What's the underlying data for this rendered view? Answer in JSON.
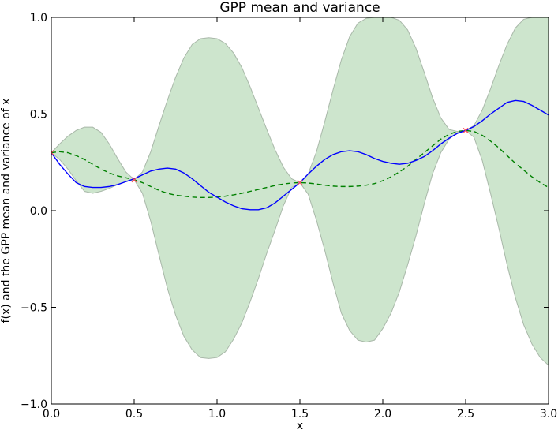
{
  "chart_data": {
    "type": "line",
    "title": "GPP mean and variance",
    "xlabel": "x",
    "ylabel": "f(x) and the GPP mean and variance of x",
    "xlim": [
      0.0,
      3.0
    ],
    "ylim": [
      -1.0,
      1.0
    ],
    "x_ticks": [
      0.0,
      0.5,
      1.0,
      1.5,
      2.0,
      2.5,
      3.0
    ],
    "x_tick_labels": [
      "0.0",
      "0.5",
      "1.0",
      "1.5",
      "2.0",
      "2.5",
      "3.0"
    ],
    "y_ticks": [
      -1.0,
      -0.5,
      0.0,
      0.5,
      1.0
    ],
    "y_tick_labels": [
      "−1.0",
      "−0.5",
      "0.0",
      "0.5",
      "1.0"
    ],
    "grid": false,
    "colors": {
      "function": "#0000ff",
      "mean": "#008000",
      "band_fill": "#cde5cd",
      "band_edge": "#a9b8a9",
      "observation": "#ff4f5a"
    },
    "series": [
      {
        "key": "f",
        "style": "solid",
        "x": [
          0.0,
          0.05,
          0.1,
          0.15,
          0.2,
          0.25,
          0.3,
          0.35,
          0.4,
          0.45,
          0.5,
          0.55,
          0.6,
          0.65,
          0.7,
          0.75,
          0.8,
          0.85,
          0.9,
          0.95,
          1.0,
          1.05,
          1.1,
          1.15,
          1.2,
          1.25,
          1.3,
          1.35,
          1.4,
          1.45,
          1.5,
          1.55,
          1.6,
          1.65,
          1.7,
          1.75,
          1.8,
          1.85,
          1.9,
          1.95,
          2.0,
          2.05,
          2.1,
          2.15,
          2.2,
          2.25,
          2.3,
          2.35,
          2.4,
          2.45,
          2.5,
          2.55,
          2.6,
          2.65,
          2.7,
          2.75,
          2.8,
          2.85,
          2.9,
          2.95,
          3.0
        ],
        "y": [
          0.3,
          0.24,
          0.19,
          0.145,
          0.125,
          0.12,
          0.12,
          0.125,
          0.135,
          0.15,
          0.165,
          0.185,
          0.205,
          0.215,
          0.22,
          0.215,
          0.195,
          0.165,
          0.13,
          0.095,
          0.07,
          0.045,
          0.025,
          0.01,
          0.005,
          0.005,
          0.015,
          0.04,
          0.075,
          0.11,
          0.145,
          0.19,
          0.23,
          0.265,
          0.29,
          0.305,
          0.31,
          0.305,
          0.29,
          0.27,
          0.255,
          0.245,
          0.24,
          0.245,
          0.26,
          0.28,
          0.31,
          0.345,
          0.375,
          0.4,
          0.415,
          0.435,
          0.465,
          0.5,
          0.53,
          0.56,
          0.57,
          0.565,
          0.545,
          0.52,
          0.495
        ]
      },
      {
        "key": "mean",
        "style": "dashed",
        "x": [
          0.0,
          0.05,
          0.1,
          0.15,
          0.2,
          0.25,
          0.3,
          0.35,
          0.4,
          0.45,
          0.5,
          0.55,
          0.6,
          0.65,
          0.7,
          0.75,
          0.8,
          0.85,
          0.9,
          0.95,
          1.0,
          1.05,
          1.1,
          1.15,
          1.2,
          1.25,
          1.3,
          1.35,
          1.4,
          1.45,
          1.5,
          1.55,
          1.6,
          1.65,
          1.7,
          1.75,
          1.8,
          1.85,
          1.9,
          1.95,
          2.0,
          2.05,
          2.1,
          2.15,
          2.2,
          2.25,
          2.3,
          2.35,
          2.4,
          2.45,
          2.5,
          2.55,
          2.6,
          2.65,
          2.7,
          2.75,
          2.8,
          2.85,
          2.9,
          2.95,
          3.0
        ],
        "y": [
          0.3,
          0.305,
          0.3,
          0.285,
          0.265,
          0.24,
          0.215,
          0.195,
          0.18,
          0.17,
          0.16,
          0.145,
          0.125,
          0.105,
          0.09,
          0.08,
          0.075,
          0.07,
          0.068,
          0.068,
          0.07,
          0.075,
          0.082,
          0.09,
          0.1,
          0.11,
          0.12,
          0.13,
          0.138,
          0.143,
          0.145,
          0.143,
          0.138,
          0.132,
          0.127,
          0.125,
          0.125,
          0.127,
          0.132,
          0.14,
          0.155,
          0.175,
          0.2,
          0.23,
          0.265,
          0.3,
          0.335,
          0.37,
          0.395,
          0.41,
          0.415,
          0.41,
          0.39,
          0.36,
          0.325,
          0.285,
          0.245,
          0.21,
          0.175,
          0.145,
          0.12
        ]
      },
      {
        "key": "band",
        "style": "filled",
        "x": [
          0.0,
          0.05,
          0.1,
          0.15,
          0.2,
          0.25,
          0.3,
          0.35,
          0.4,
          0.45,
          0.5,
          0.55,
          0.6,
          0.65,
          0.7,
          0.75,
          0.8,
          0.85,
          0.9,
          0.95,
          1.0,
          1.05,
          1.1,
          1.15,
          1.2,
          1.25,
          1.3,
          1.35,
          1.4,
          1.45,
          1.5,
          1.55,
          1.6,
          1.65,
          1.7,
          1.75,
          1.8,
          1.85,
          1.9,
          1.95,
          2.0,
          2.05,
          2.1,
          2.15,
          2.2,
          2.25,
          2.3,
          2.35,
          2.4,
          2.45,
          2.5,
          2.55,
          2.6,
          2.65,
          2.7,
          2.75,
          2.8,
          2.85,
          2.9,
          2.95,
          3.0
        ],
        "upper": [
          0.3,
          0.345,
          0.385,
          0.415,
          0.432,
          0.432,
          0.405,
          0.345,
          0.27,
          0.2,
          0.16,
          0.2,
          0.305,
          0.44,
          0.57,
          0.69,
          0.79,
          0.86,
          0.89,
          0.895,
          0.89,
          0.865,
          0.815,
          0.74,
          0.64,
          0.53,
          0.42,
          0.315,
          0.225,
          0.165,
          0.145,
          0.19,
          0.305,
          0.46,
          0.625,
          0.78,
          0.9,
          0.97,
          0.995,
          1.0,
          1.0,
          1.0,
          0.985,
          0.935,
          0.84,
          0.715,
          0.585,
          0.48,
          0.42,
          0.41,
          0.415,
          0.44,
          0.52,
          0.63,
          0.75,
          0.86,
          0.945,
          0.99,
          1.0,
          1.0,
          1.0
        ],
        "lower": [
          0.3,
          0.265,
          0.215,
          0.155,
          0.1,
          0.09,
          0.1,
          0.115,
          0.135,
          0.15,
          0.16,
          0.09,
          -0.055,
          -0.23,
          -0.4,
          -0.54,
          -0.65,
          -0.72,
          -0.76,
          -0.765,
          -0.76,
          -0.73,
          -0.665,
          -0.58,
          -0.47,
          -0.35,
          -0.22,
          -0.1,
          0.025,
          0.12,
          0.145,
          0.085,
          -0.05,
          -0.205,
          -0.375,
          -0.53,
          -0.62,
          -0.67,
          -0.68,
          -0.67,
          -0.61,
          -0.53,
          -0.42,
          -0.28,
          -0.13,
          0.035,
          0.19,
          0.3,
          0.37,
          0.405,
          0.415,
          0.38,
          0.26,
          0.09,
          -0.09,
          -0.28,
          -0.45,
          -0.59,
          -0.69,
          -0.76,
          -0.8
        ]
      }
    ],
    "observations": {
      "x": [
        0.0,
        0.5,
        1.5,
        2.5
      ],
      "y": [
        0.3,
        0.16,
        0.145,
        0.415
      ]
    }
  }
}
